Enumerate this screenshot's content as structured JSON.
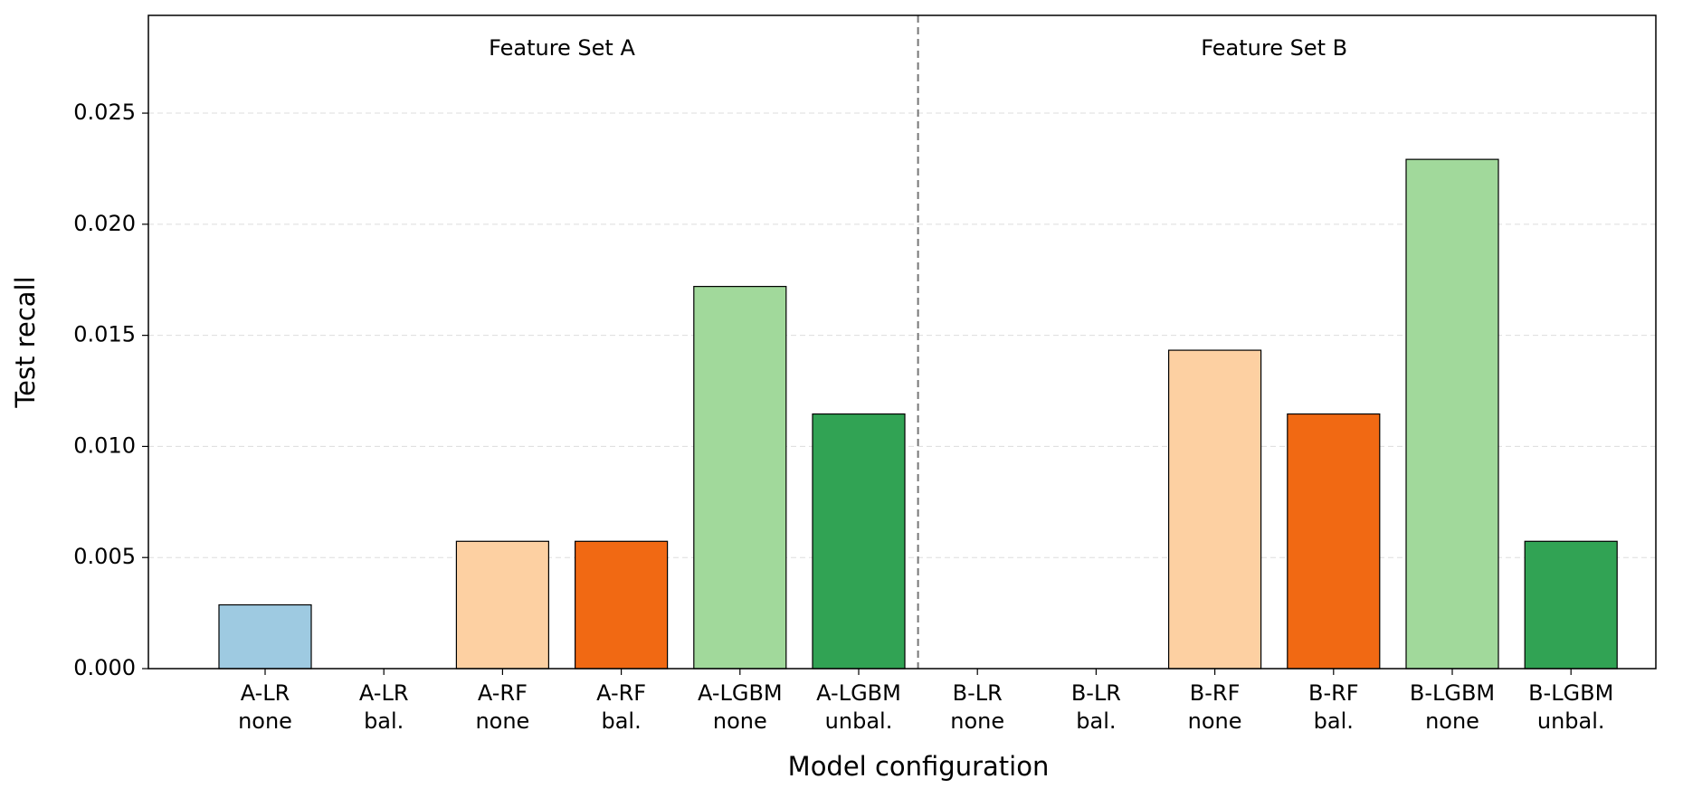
{
  "chart_data": {
    "type": "bar",
    "x_label": "Model configuration",
    "y_label": "Test recall",
    "annotations": [
      "Feature Set A",
      "Feature Set B"
    ],
    "categories": [
      [
        "A-LR",
        "none"
      ],
      [
        "A-LR",
        "bal."
      ],
      [
        "A-RF",
        "none"
      ],
      [
        "A-RF",
        "bal."
      ],
      [
        "A-LGBM",
        "none"
      ],
      [
        "A-LGBM",
        "unbal."
      ],
      [
        "B-LR",
        "none"
      ],
      [
        "B-LR",
        "bal."
      ],
      [
        "B-RF",
        "none"
      ],
      [
        "B-RF",
        "bal."
      ],
      [
        "B-LGBM",
        "none"
      ],
      [
        "B-LGBM",
        "unbal."
      ]
    ],
    "values": [
      0.00287,
      0,
      0.00573,
      0.00573,
      0.0172,
      0.01146,
      0,
      0,
      0.01433,
      0.01146,
      0.02292,
      0.00573
    ],
    "colors": [
      "#9ecae1",
      "#9ecae1",
      "#fdd0a2",
      "#f16913",
      "#a1d99b",
      "#31a354",
      "#9ecae1",
      "#9ecae1",
      "#fdd0a2",
      "#f16913",
      "#a1d99b",
      "#31a354"
    ],
    "ylim": [
      0,
      0.0294
    ],
    "yticks": [
      {
        "value": 0,
        "label": "0.000"
      },
      0.005,
      {
        "value": 0.01,
        "label": "0.010"
      },
      0.015,
      {
        "value": 0.02,
        "label": "0.020"
      },
      0.025
    ],
    "grid": true
  }
}
